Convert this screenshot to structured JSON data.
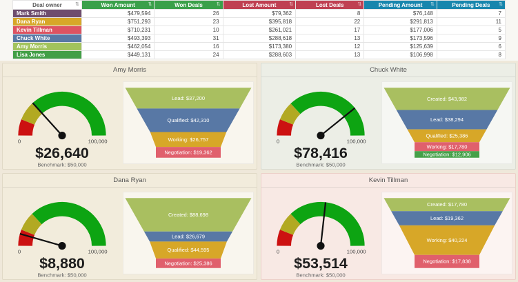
{
  "table": {
    "sort_icon": "⇅",
    "columns": [
      {
        "label": "Deal owner",
        "color": null
      },
      {
        "label": "Won Amount",
        "color": "#3aa04a"
      },
      {
        "label": "Won Deals",
        "color": "#3aa04a"
      },
      {
        "label": "Lost Amount",
        "color": "#bf4052"
      },
      {
        "label": "Lost Deals",
        "color": "#bf4052"
      },
      {
        "label": "Pending Amount",
        "color": "#1886ad"
      },
      {
        "label": "Pending Deals",
        "color": "#1886ad"
      }
    ],
    "rows": [
      {
        "owner": "Mark Smith",
        "owner_color": "#6e4d6e",
        "cells": [
          "$479,594",
          "26",
          "$79,362",
          "8",
          "$76,148",
          "7"
        ]
      },
      {
        "owner": "Dana Ryan",
        "owner_color": "#d7a728",
        "cells": [
          "$751,293",
          "23",
          "$395,818",
          "22",
          "$291,813",
          "11"
        ]
      },
      {
        "owner": "Kevin Tillman",
        "owner_color": "#dd5361",
        "cells": [
          "$710,231",
          "10",
          "$261,021",
          "17",
          "$177,006",
          "5"
        ]
      },
      {
        "owner": "Chuck White",
        "owner_color": "#5878a5",
        "cells": [
          "$493,393",
          "31",
          "$288,618",
          "13",
          "$173,596",
          "9"
        ]
      },
      {
        "owner": "Amy Morris",
        "owner_color": "#a2c35c",
        "cells": [
          "$462,054",
          "16",
          "$173,380",
          "12",
          "$125,639",
          "6"
        ]
      },
      {
        "owner": "Lisa Jones",
        "owner_color": "#429f46",
        "cells": [
          "$449,131",
          "24",
          "$288,603",
          "13",
          "$106,998",
          "8"
        ]
      }
    ]
  },
  "gauge": {
    "segments": [
      {
        "name": "red",
        "color": "#cc1111",
        "from": 0,
        "to": 0.12
      },
      {
        "name": "olive",
        "color": "#b2a922",
        "from": 0.12,
        "to": 0.26
      },
      {
        "name": "green",
        "color": "#0da412",
        "from": 0.26,
        "to": 1
      }
    ]
  },
  "chart_data": [
    {
      "type": "table",
      "title": "Deals by owner",
      "columns": [
        "Deal owner",
        "Won Amount",
        "Won Deals",
        "Lost Amount",
        "Lost Deals",
        "Pending Amount",
        "Pending Deals"
      ],
      "rows": [
        [
          "Mark Smith",
          "$479,594",
          26,
          "$79,362",
          8,
          "$76,148",
          7
        ],
        [
          "Dana Ryan",
          "$751,293",
          23,
          "$395,818",
          22,
          "$291,813",
          11
        ],
        [
          "Kevin Tillman",
          "$710,231",
          10,
          "$261,021",
          17,
          "$177,006",
          5
        ],
        [
          "Chuck White",
          "$493,393",
          31,
          "$288,618",
          13,
          "$173,596",
          9
        ],
        [
          "Amy Morris",
          "$462,054",
          16,
          "$173,380",
          12,
          "$125,639",
          6
        ],
        [
          "Lisa Jones",
          "$449,131",
          24,
          "$288,603",
          13,
          "$106,998",
          8
        ]
      ]
    },
    {
      "type": "gauge",
      "title": "Amy Morris",
      "value": 26640,
      "min": 0,
      "max": 100000,
      "benchmark": 50000
    },
    {
      "type": "gauge",
      "title": "Chuck White",
      "value": 78416,
      "min": 0,
      "max": 100000,
      "benchmark": 50000
    },
    {
      "type": "gauge",
      "title": "Dana Ryan",
      "value": 8880,
      "min": 0,
      "max": 100000,
      "benchmark": 50000
    },
    {
      "type": "gauge",
      "title": "Kevin Tillman",
      "value": 53514,
      "min": 0,
      "max": 100000,
      "benchmark": 50000
    },
    {
      "type": "funnel",
      "title": "Amy Morris",
      "categories": [
        "Lead",
        "Qualified",
        "Working",
        "Negotiation"
      ],
      "values": [
        37200,
        42310,
        26757,
        19362
      ]
    },
    {
      "type": "funnel",
      "title": "Chuck White",
      "categories": [
        "Created",
        "Lead",
        "Qualified",
        "Working",
        "Negotiation"
      ],
      "values": [
        43982,
        38294,
        25386,
        17780,
        12906
      ]
    },
    {
      "type": "funnel",
      "title": "Dana Ryan",
      "categories": [
        "Created",
        "Lead",
        "Qualified",
        "Negotiation"
      ],
      "values": [
        88698,
        26679,
        44595,
        25386
      ]
    },
    {
      "type": "funnel",
      "title": "Kevin Tillman",
      "categories": [
        "Created",
        "Lead",
        "Working",
        "Negotiation"
      ],
      "values": [
        17780,
        19362,
        40224,
        17838
      ]
    }
  ],
  "panels": [
    {
      "title": "Amy Morris",
      "bg": "#f2ecdc",
      "border": "#e0d9c6",
      "gauge": {
        "value": 26640,
        "max": 100000,
        "value_label": "$26,640",
        "min_label": "0",
        "max_label": "100,000",
        "benchmark_label": "Benchmark: $50,000"
      },
      "funnel": [
        {
          "label": "Lead: $37,200",
          "value": 37200,
          "color": "#a9bf60"
        },
        {
          "label": "Qualified: $42,310",
          "value": 42310,
          "color": "#5878a5"
        },
        {
          "label": "Working: $26,757",
          "value": 26757,
          "color": "#d7a728"
        },
        {
          "label": "Negotiation: $19,362",
          "value": 19362,
          "color": "#e0606c"
        }
      ]
    },
    {
      "title": "Chuck White",
      "bg": "#eceee6",
      "border": "#d9dcd2",
      "gauge": {
        "value": 78416,
        "max": 100000,
        "value_label": "$78,416",
        "min_label": "0",
        "max_label": "100,000",
        "benchmark_label": "Benchmark: $50,000"
      },
      "funnel": [
        {
          "label": "Created: $43,982",
          "value": 43982,
          "color": "#a9bf60"
        },
        {
          "label": "Lead: $38,294",
          "value": 38294,
          "color": "#5878a5"
        },
        {
          "label": "Qualified: $25,386",
          "value": 25386,
          "color": "#d7a728"
        },
        {
          "label": "Working: $17,780",
          "value": 17780,
          "color": "#e0606c"
        },
        {
          "label": "Negotiation: $12,906",
          "value": 12906,
          "color": "#45a049"
        }
      ]
    },
    {
      "title": "Dana Ryan",
      "bg": "#f2ecdc",
      "border": "#e0d9c6",
      "gauge": {
        "value": 8880,
        "max": 100000,
        "value_label": "$8,880",
        "min_label": "0",
        "max_label": "100,000",
        "benchmark_label": "Benchmark: $50,000"
      },
      "funnel": [
        {
          "label": "Created: $88,698",
          "value": 88698,
          "color": "#a9bf60"
        },
        {
          "label": "Lead: $26,679",
          "value": 26679,
          "color": "#5878a5"
        },
        {
          "label": "Qualified: $44,595",
          "value": 44595,
          "color": "#d7a728"
        },
        {
          "label": "Negotiation: $25,386",
          "value": 25386,
          "color": "#e0606c"
        }
      ]
    },
    {
      "title": "Kevin Tillman",
      "bg": "#f8e9e4",
      "border": "#ecd0c8",
      "gauge": {
        "value": 53514,
        "max": 100000,
        "value_label": "$53,514",
        "min_label": "0",
        "max_label": "100,000",
        "benchmark_label": "Benchmark: $50,000"
      },
      "funnel": [
        {
          "label": "Created: $17,780",
          "value": 17780,
          "color": "#a9bf60"
        },
        {
          "label": "Lead: $19,362",
          "value": 19362,
          "color": "#5878a5"
        },
        {
          "label": "Working: $40,224",
          "value": 40224,
          "color": "#d7a728"
        },
        {
          "label": "Negotiation: $17,838",
          "value": 17838,
          "color": "#e0606c"
        }
      ]
    }
  ]
}
